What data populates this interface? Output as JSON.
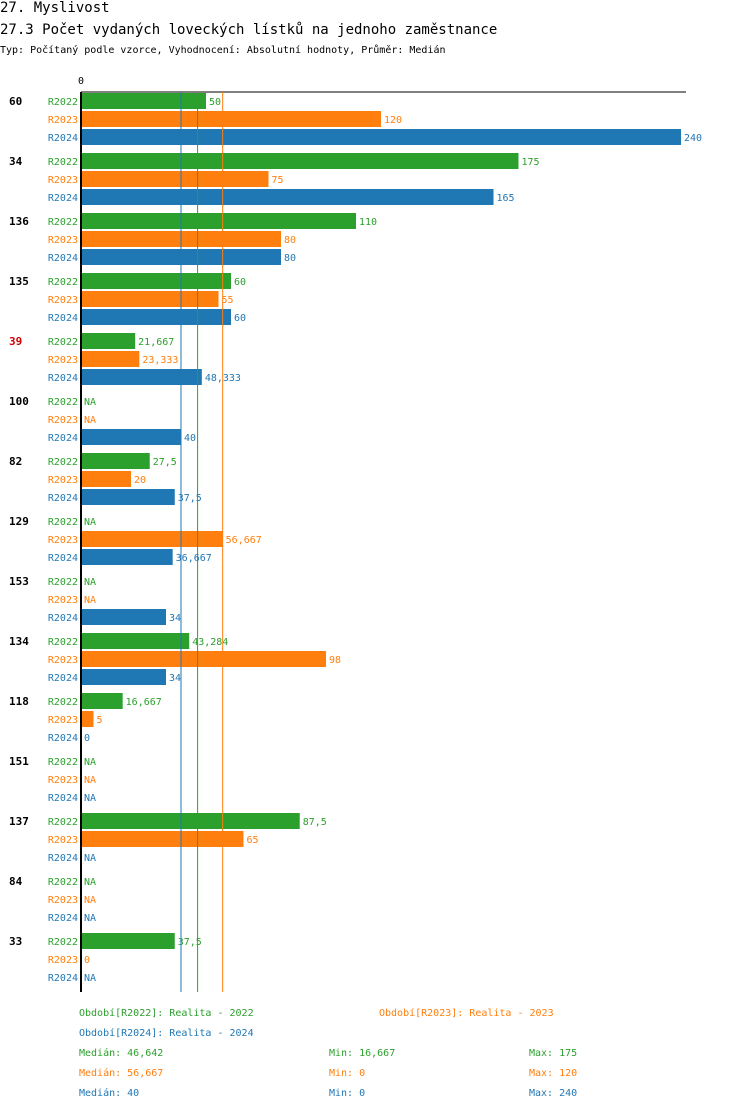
{
  "header": {
    "section_title": "27. Myslivost",
    "chart_title": "27.3 Počet vydaných loveckých lístků na jednoho zaměstnance",
    "subtitle": "Typ: Počítaný podle vzorce, Vyhodnocení: Absolutní hodnoty, Průměr: Medián"
  },
  "colors": {
    "R2022": "#2ca02c",
    "R2023": "#ff7f0e",
    "R2024": "#1f77b4",
    "highlight": "#cc0000"
  },
  "chart_data": {
    "type": "bar",
    "orientation": "horizontal",
    "axis_zero_label": "0",
    "xlim": [
      0,
      240
    ],
    "series_names": [
      "R2022",
      "R2023",
      "R2024"
    ],
    "groups": [
      {
        "label": "60",
        "highlight": false,
        "values": [
          50,
          120,
          240
        ],
        "labels": [
          "50",
          "120",
          "240"
        ]
      },
      {
        "label": "34",
        "highlight": false,
        "values": [
          175,
          75,
          165
        ],
        "labels": [
          "175",
          "75",
          "165"
        ]
      },
      {
        "label": "136",
        "highlight": false,
        "values": [
          110,
          80,
          80
        ],
        "labels": [
          "110",
          "80",
          "80"
        ]
      },
      {
        "label": "135",
        "highlight": false,
        "values": [
          60,
          55,
          60
        ],
        "labels": [
          "60",
          "55",
          "60"
        ]
      },
      {
        "label": "39",
        "highlight": true,
        "values": [
          21.667,
          23.333,
          48.333
        ],
        "labels": [
          "21,667",
          "23,333",
          "48,333"
        ]
      },
      {
        "label": "100",
        "highlight": false,
        "values": [
          null,
          null,
          40
        ],
        "labels": [
          "NA",
          "NA",
          "40"
        ]
      },
      {
        "label": "82",
        "highlight": false,
        "values": [
          27.5,
          20,
          37.5
        ],
        "labels": [
          "27,5",
          "20",
          "37,5"
        ]
      },
      {
        "label": "129",
        "highlight": false,
        "values": [
          null,
          56.667,
          36.667
        ],
        "labels": [
          "NA",
          "56,667",
          "36,667"
        ]
      },
      {
        "label": "153",
        "highlight": false,
        "values": [
          null,
          null,
          34
        ],
        "labels": [
          "NA",
          "NA",
          "34"
        ]
      },
      {
        "label": "134",
        "highlight": false,
        "values": [
          43.284,
          98,
          34
        ],
        "labels": [
          "43,284",
          "98",
          "34"
        ]
      },
      {
        "label": "118",
        "highlight": false,
        "values": [
          16.667,
          5,
          0
        ],
        "labels": [
          "16,667",
          "5",
          "0"
        ]
      },
      {
        "label": "151",
        "highlight": false,
        "values": [
          null,
          null,
          null
        ],
        "labels": [
          "NA",
          "NA",
          "NA"
        ]
      },
      {
        "label": "137",
        "highlight": false,
        "values": [
          87.5,
          65,
          null
        ],
        "labels": [
          "87,5",
          "65",
          "NA"
        ]
      },
      {
        "label": "84",
        "highlight": false,
        "values": [
          null,
          null,
          null
        ],
        "labels": [
          "NA",
          "NA",
          "NA"
        ]
      },
      {
        "label": "33",
        "highlight": false,
        "values": [
          37.5,
          0,
          null
        ],
        "labels": [
          "37,5",
          "0",
          "NA"
        ]
      }
    ],
    "median_lines": [
      {
        "series": "R2022",
        "value": 46.642
      },
      {
        "series": "R2023",
        "value": 56.667
      },
      {
        "series": "R2024",
        "value": 40
      }
    ]
  },
  "legend": {
    "periods": [
      {
        "series": "R2022",
        "text": "Období[R2022]: Realita - 2022"
      },
      {
        "series": "R2023",
        "text": "Období[R2023]: Realita - 2023"
      },
      {
        "series": "R2024",
        "text": "Období[R2024]: Realita - 2024"
      }
    ],
    "stats": [
      {
        "series": "R2022",
        "median": "Medián: 46,642",
        "min": "Min: 16,667",
        "max": "Max: 175"
      },
      {
        "series": "R2023",
        "median": "Medián: 56,667",
        "min": "Min: 0",
        "max": "Max: 120"
      },
      {
        "series": "R2024",
        "median": "Medián: 40",
        "min": "Min: 0",
        "max": "Max: 240"
      }
    ]
  }
}
